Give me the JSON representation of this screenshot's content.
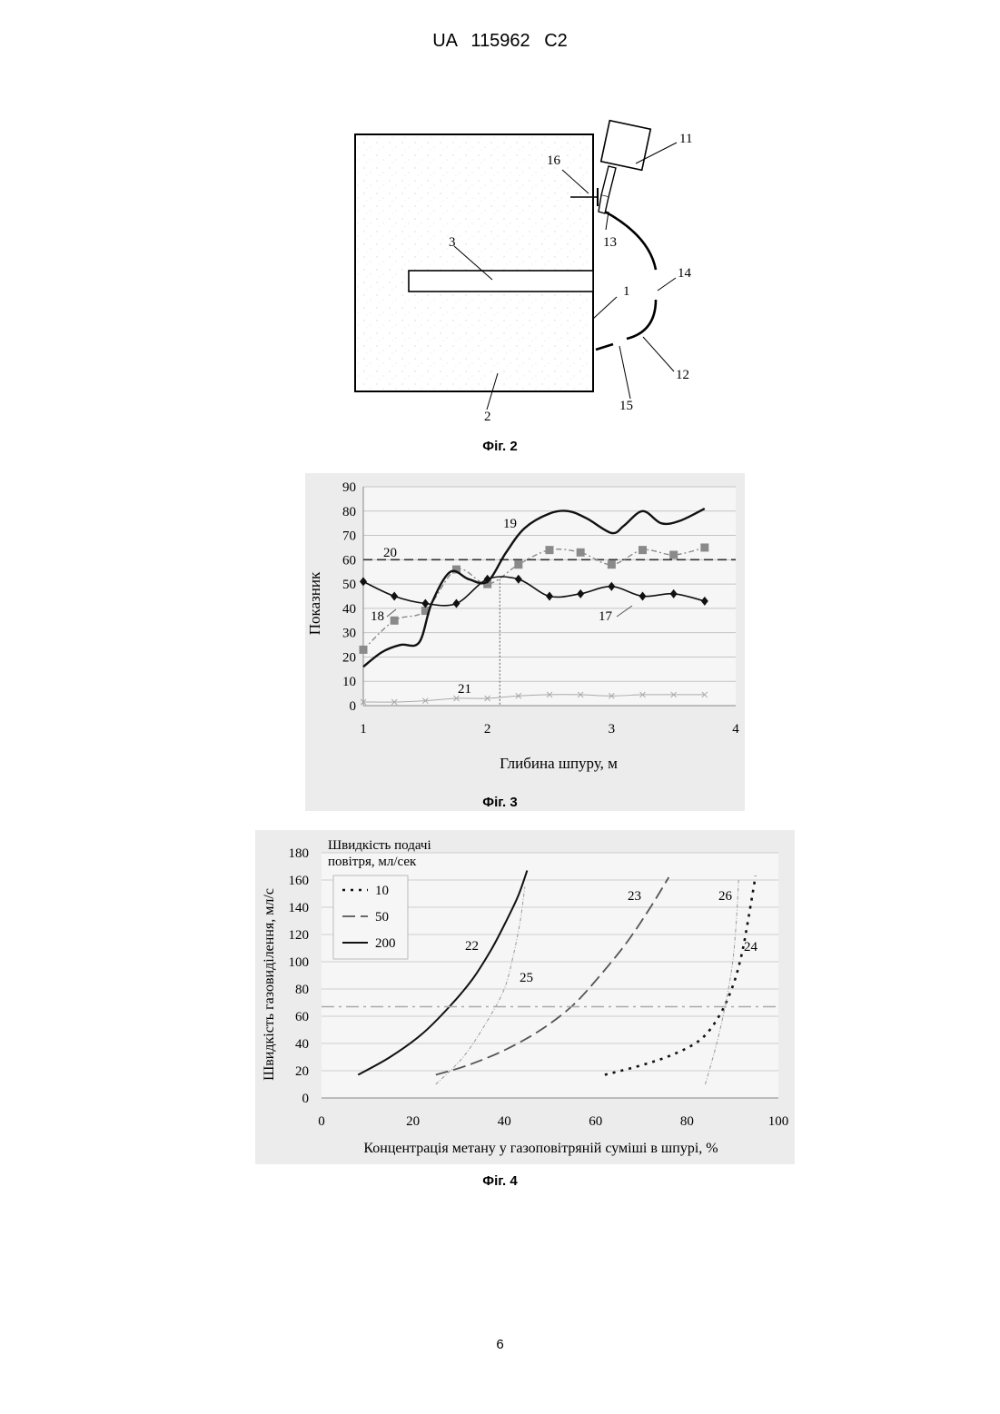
{
  "header": "UA 115962 C2",
  "page_number": "6",
  "fig2": {
    "caption": "Фіг. 2",
    "labels": [
      "1",
      "2",
      "3",
      "11",
      "12",
      "13",
      "14",
      "15",
      "16"
    ]
  },
  "fig3": {
    "caption": "Фіг. 3",
    "chart_data": {
      "type": "line",
      "title": "",
      "xlabel": "Глибина шпуру, м",
      "ylabel": "Показник",
      "xlim": [
        1,
        4
      ],
      "ylim": [
        0,
        90
      ],
      "xticks": [
        "1",
        "2",
        "3",
        "4"
      ],
      "yticks": [
        "0",
        "10",
        "20",
        "30",
        "40",
        "50",
        "60",
        "70",
        "80",
        "90"
      ],
      "grid": true,
      "series": [
        {
          "label": "17",
          "style": "solid-diamond",
          "color": "#111111",
          "x": [
            1.0,
            1.25,
            1.5,
            1.75,
            2.0,
            2.25,
            2.5,
            2.75,
            3.0,
            3.25,
            3.5,
            3.75
          ],
          "y": [
            51,
            45,
            42,
            42,
            52,
            52,
            45,
            46,
            49,
            45,
            46,
            43
          ]
        },
        {
          "label": "18",
          "style": "dashdot-square",
          "color": "#808080",
          "x": [
            1.0,
            1.25,
            1.5,
            1.75,
            2.0,
            2.25,
            2.5,
            2.75,
            3.0,
            3.25,
            3.5,
            3.75
          ],
          "y": [
            23,
            35,
            39,
            56,
            50,
            58,
            64,
            63,
            58,
            64,
            62,
            65
          ]
        },
        {
          "label": "19",
          "style": "solid-thick",
          "color": "#111111",
          "x": [
            1.0,
            1.15,
            1.3,
            1.45,
            1.55,
            1.7,
            1.85,
            2.0,
            2.15,
            2.3,
            2.5,
            2.65,
            2.8,
            3.0,
            3.1,
            3.25,
            3.4,
            3.55,
            3.75
          ],
          "y": [
            16,
            22,
            25,
            26,
            42,
            55,
            52,
            51,
            63,
            73,
            79,
            80,
            77,
            71,
            74,
            80,
            75,
            76,
            81
          ]
        },
        {
          "label": "20",
          "style": "dashed-horizontal",
          "color": "#333333",
          "x": [
            1.0,
            4.0
          ],
          "y": [
            60,
            60
          ]
        },
        {
          "label": "21",
          "style": "x-markers",
          "color": "#aaaaaa",
          "x": [
            1.0,
            1.25,
            1.5,
            1.75,
            2.0,
            2.25,
            2.5,
            2.75,
            3.0,
            3.25,
            3.5,
            3.75
          ],
          "y": [
            1.5,
            1.5,
            2,
            3,
            3,
            4,
            4.5,
            4.5,
            4,
            4.5,
            4.5,
            4.5
          ]
        }
      ],
      "vertical_marker_x": 2.1
    }
  },
  "fig4": {
    "caption": "Фіг. 4",
    "chart_data": {
      "type": "line",
      "title": "",
      "xlabel": "Концентрація метану у газоповітряній суміші в шпурі, %",
      "ylabel": "Швидкість газовиділення, мл/с",
      "xlim": [
        0,
        100
      ],
      "ylim": [
        0,
        180
      ],
      "xticks": [
        "0",
        "20",
        "40",
        "60",
        "80",
        "100"
      ],
      "yticks": [
        "0",
        "20",
        "40",
        "60",
        "80",
        "100",
        "120",
        "140",
        "160",
        "180"
      ],
      "grid": true,
      "legend": {
        "title": "Швидкість подачі повітря, мл/сек",
        "placement": "top-left",
        "entries": [
          {
            "label": "10",
            "style": "dotted"
          },
          {
            "label": "50",
            "style": "dashed"
          },
          {
            "label": "200",
            "style": "solid"
          }
        ]
      },
      "series": [
        {
          "label": "22",
          "style": "solid",
          "color": "#111111",
          "x": [
            8,
            15,
            22,
            28,
            33,
            37,
            40,
            43,
            45
          ],
          "y": [
            17,
            30,
            47,
            67,
            87,
            108,
            127,
            148,
            167
          ]
        },
        {
          "label": "23",
          "style": "dashed",
          "color": "#555555",
          "x": [
            25,
            32,
            40,
            48,
            55,
            61,
            67,
            72,
            76
          ],
          "y": [
            17,
            24,
            35,
            50,
            68,
            90,
            115,
            140,
            162
          ]
        },
        {
          "label": "24",
          "style": "dotted",
          "color": "#111111",
          "x": [
            62,
            70,
            77,
            83,
            87,
            90,
            92,
            93.5,
            95
          ],
          "y": [
            17,
            24,
            32,
            43,
            60,
            82,
            106,
            133,
            163
          ]
        },
        {
          "label": "25",
          "style": "thin-dashdot",
          "color": "#999999",
          "x": [
            25,
            31,
            36,
            40,
            42,
            43.5,
            44.5
          ],
          "y": [
            10,
            30,
            55,
            80,
            105,
            130,
            155
          ]
        },
        {
          "label": "26",
          "style": "thin-dashdot",
          "color": "#999999",
          "x": [
            84,
            86.5,
            88.5,
            90,
            90.8,
            91.3
          ],
          "y": [
            10,
            40,
            70,
            100,
            130,
            160
          ]
        },
        {
          "label": "",
          "style": "dashdot-horizontal",
          "color": "#aaaaaa",
          "x": [
            0,
            100
          ],
          "y": [
            67,
            67
          ]
        }
      ]
    }
  }
}
